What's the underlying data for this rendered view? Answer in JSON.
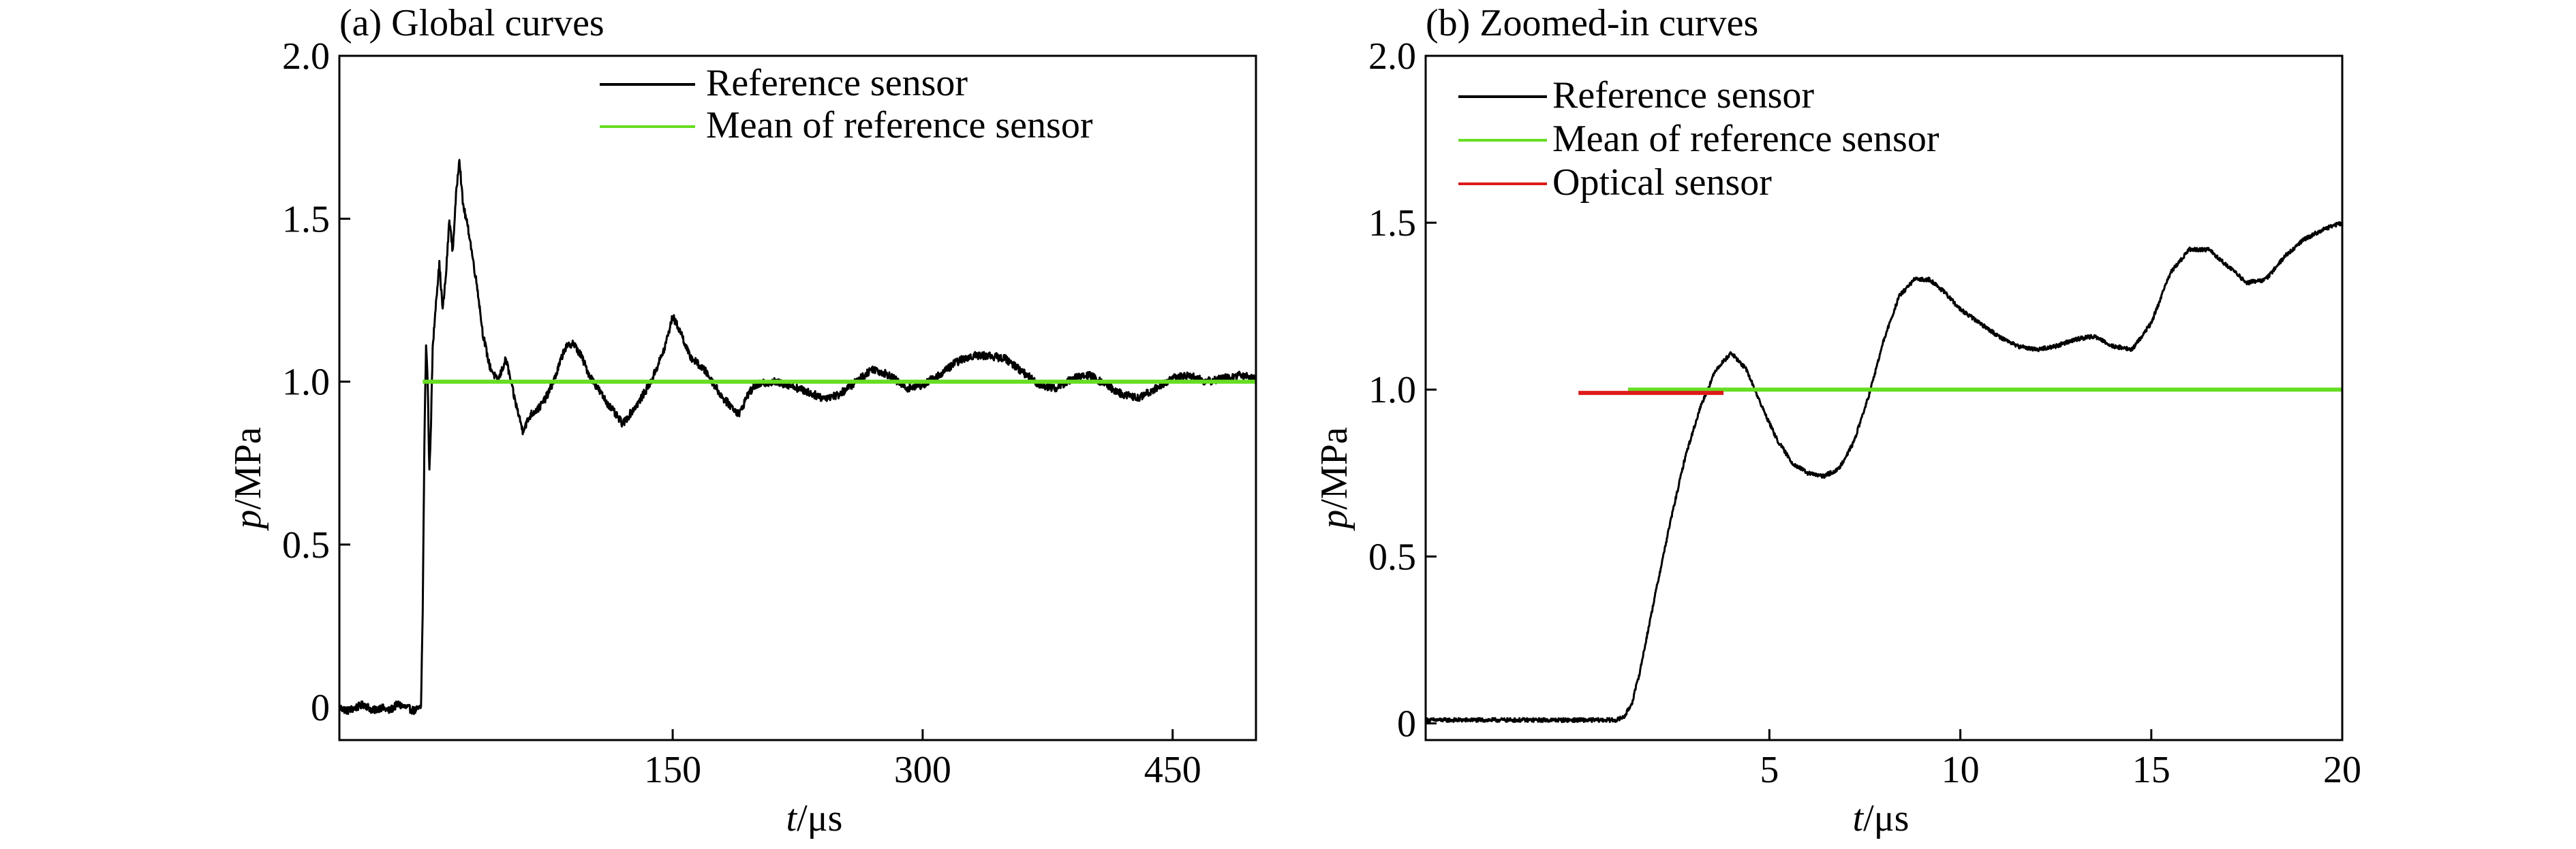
{
  "chart_data": [
    {
      "type": "line",
      "title": "(a) Global curves",
      "xlabel_var": "t",
      "xlabel_unit": "/μs",
      "ylabel_var": "p",
      "ylabel_unit": "/MPa",
      "xlim": [
        -50,
        500
      ],
      "ylim": [
        -0.1,
        2.0
      ],
      "xticks": [
        150,
        300,
        450
      ],
      "xtick_labels": [
        "150",
        "300",
        "450"
      ],
      "yticks": [
        0,
        0.5,
        1.0,
        1.5,
        2.0
      ],
      "ytick_labels": [
        "0",
        "0.5",
        "1.0",
        "1.5",
        "2.0"
      ],
      "legend_position": "top-center",
      "grid": false,
      "series": [
        {
          "name": "Reference sensor",
          "color": "#000000",
          "noise": 0.012,
          "x": [
            -50,
            -45,
            -40,
            -35,
            -30,
            -25,
            -20,
            -15,
            -10,
            -5,
            -1,
            0,
            1,
            2,
            3,
            4,
            5,
            6,
            8,
            10,
            12,
            14,
            16,
            18,
            20,
            22,
            24,
            26,
            28,
            30,
            33,
            36,
            40,
            45,
            50,
            55,
            60,
            65,
            70,
            75,
            80,
            85,
            90,
            95,
            100,
            110,
            120,
            130,
            137,
            145,
            150,
            155,
            160,
            170,
            180,
            190,
            195,
            200,
            210,
            220,
            230,
            240,
            250,
            260,
            270,
            280,
            290,
            300,
            310,
            320,
            330,
            340,
            350,
            360,
            370,
            380,
            390,
            400,
            410,
            420,
            430,
            440,
            450,
            460,
            470,
            480,
            490,
            500
          ],
          "y": [
            0.0,
            -0.01,
            0.0,
            0.01,
            -0.01,
            0.0,
            -0.01,
            0.01,
            0.0,
            -0.01,
            0.0,
            0.3,
            0.8,
            1.12,
            1.0,
            0.72,
            0.88,
            1.1,
            1.25,
            1.36,
            1.22,
            1.33,
            1.5,
            1.4,
            1.57,
            1.69,
            1.55,
            1.5,
            1.45,
            1.38,
            1.28,
            1.15,
            1.05,
            1.0,
            1.07,
            0.95,
            0.85,
            0.9,
            0.92,
            0.96,
            1.02,
            1.1,
            1.12,
            1.08,
            1.02,
            0.94,
            0.87,
            0.94,
            1.0,
            1.1,
            1.2,
            1.15,
            1.08,
            1.03,
            0.95,
            0.9,
            0.96,
            0.99,
            1.0,
            0.99,
            0.97,
            0.95,
            0.96,
            1.0,
            1.04,
            1.02,
            0.98,
            0.99,
            1.02,
            1.06,
            1.08,
            1.08,
            1.07,
            1.03,
            0.99,
            0.98,
            1.01,
            1.02,
            0.99,
            0.96,
            0.95,
            0.98,
            1.01,
            1.02,
            1.0,
            1.01,
            1.02,
            1.01
          ]
        },
        {
          "name": "Mean of reference sensor",
          "color": "#66dd22",
          "noise": 0,
          "x": [
            0,
            500
          ],
          "y": [
            1.0,
            1.0
          ]
        }
      ]
    },
    {
      "type": "line",
      "title": "(b) Zoomed-in curves",
      "xlabel_var": "t",
      "xlabel_unit": "/μs",
      "ylabel_var": "p",
      "ylabel_unit": "/MPa",
      "xlim": [
        -4,
        20
      ],
      "ylim": [
        -0.05,
        2.0
      ],
      "xticks": [
        5,
        10,
        15,
        20
      ],
      "xtick_labels": [
        "5",
        "10",
        "15",
        "20"
      ],
      "yticks": [
        0,
        0.5,
        1.0,
        1.5,
        2.0
      ],
      "ytick_labels": [
        "0",
        "0.5",
        "1.0",
        "1.5",
        "2.0"
      ],
      "legend_position": "top-left",
      "grid": false,
      "series": [
        {
          "name": "Reference sensor",
          "color": "#000000",
          "noise": 0.006,
          "x": [
            -4,
            -3,
            -2,
            -1,
            0,
            1,
            1.2,
            1.4,
            1.6,
            2.0,
            2.4,
            2.8,
            3.2,
            3.6,
            4.0,
            4.4,
            4.8,
            5.2,
            5.6,
            6.0,
            6.4,
            6.8,
            7.2,
            7.6,
            8.0,
            8.4,
            8.8,
            9.2,
            9.6,
            10.0,
            10.5,
            11.0,
            11.5,
            12.0,
            12.5,
            13.0,
            13.5,
            14.0,
            14.5,
            15.0,
            15.5,
            16.0,
            16.5,
            17.0,
            17.5,
            18.0,
            18.5,
            19.0,
            19.5,
            20.0
          ],
          "y": [
            0.01,
            0.01,
            0.01,
            0.01,
            0.01,
            0.01,
            0.02,
            0.06,
            0.15,
            0.38,
            0.6,
            0.8,
            0.95,
            1.06,
            1.11,
            1.06,
            0.95,
            0.85,
            0.78,
            0.75,
            0.74,
            0.76,
            0.84,
            0.98,
            1.15,
            1.28,
            1.33,
            1.33,
            1.29,
            1.24,
            1.2,
            1.16,
            1.13,
            1.12,
            1.13,
            1.15,
            1.16,
            1.13,
            1.12,
            1.2,
            1.35,
            1.42,
            1.42,
            1.37,
            1.32,
            1.33,
            1.4,
            1.45,
            1.48,
            1.5
          ]
        },
        {
          "name": "Mean of reference sensor",
          "color": "#66dd22",
          "noise": 0,
          "x": [
            1.3,
            20
          ],
          "y": [
            1.0,
            1.0
          ]
        },
        {
          "name": "Optical sensor",
          "color": "#dd1a1a",
          "noise": 0,
          "x": [
            0,
            3.8
          ],
          "y": [
            0.99,
            0.99
          ]
        }
      ]
    }
  ]
}
